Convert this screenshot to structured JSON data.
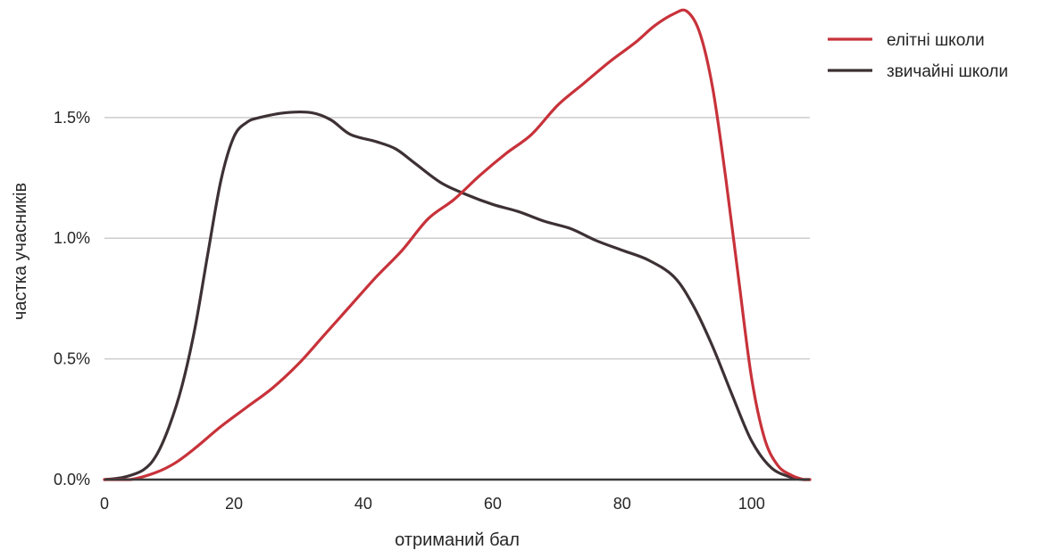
{
  "chart_data": {
    "type": "line",
    "title": "",
    "xlabel": "отриманий бал",
    "ylabel": "частка учасників",
    "xlim": [
      0,
      109
    ],
    "ylim": [
      0,
      0.0195
    ],
    "xticks": [
      {
        "value": 0,
        "label": "0"
      },
      {
        "value": 20,
        "label": "20"
      },
      {
        "value": 40,
        "label": "40"
      },
      {
        "value": 60,
        "label": "60"
      },
      {
        "value": 80,
        "label": "80"
      },
      {
        "value": 100,
        "label": "100"
      }
    ],
    "yticks": [
      {
        "value": 0.0,
        "label": "0.0%"
      },
      {
        "value": 0.005,
        "label": "0.5%"
      },
      {
        "value": 0.01,
        "label": "1.0%"
      },
      {
        "value": 0.015,
        "label": "1.5%"
      }
    ],
    "grid": "horizontal",
    "legend": "top-right",
    "series": [
      {
        "name": "елітні школи",
        "color": "#c8323a",
        "x": [
          0,
          4,
          8,
          11,
          14,
          18,
          22,
          26,
          30,
          34,
          38,
          42,
          46,
          50,
          54,
          58,
          62,
          66,
          70,
          74,
          78,
          82,
          85,
          88,
          90,
          92,
          94,
          96,
          98,
          100,
          102,
          104,
          106,
          108,
          109
        ],
        "y": [
          0.0,
          0.0,
          0.0003,
          0.0007,
          0.0013,
          0.0022,
          0.003,
          0.0038,
          0.0048,
          0.006,
          0.0072,
          0.0084,
          0.0095,
          0.0108,
          0.0116,
          0.0126,
          0.0135,
          0.0143,
          0.0155,
          0.0164,
          0.0173,
          0.0181,
          0.0188,
          0.0193,
          0.0194,
          0.0185,
          0.0162,
          0.0125,
          0.0083,
          0.0042,
          0.0017,
          0.0006,
          0.0002,
          0.0,
          0.0
        ]
      },
      {
        "name": "звичайні школи",
        "color": "#3d3134",
        "x": [
          0,
          3,
          6,
          8,
          10,
          12,
          14,
          16,
          18,
          20,
          22,
          24,
          28,
          32,
          35,
          38,
          42,
          45,
          48,
          52,
          56,
          60,
          64,
          68,
          72,
          76,
          80,
          84,
          88,
          91,
          94,
          97,
          100,
          103,
          106,
          108,
          109
        ],
        "y": [
          0.0,
          0.0001,
          0.0004,
          0.001,
          0.0022,
          0.0039,
          0.0063,
          0.0094,
          0.0124,
          0.0142,
          0.0148,
          0.015,
          0.0152,
          0.0152,
          0.0149,
          0.0143,
          0.014,
          0.0137,
          0.0131,
          0.0123,
          0.0118,
          0.0114,
          0.0111,
          0.0107,
          0.0104,
          0.0099,
          0.0095,
          0.0091,
          0.0084,
          0.0072,
          0.0055,
          0.0035,
          0.0016,
          0.0005,
          0.0001,
          0.0,
          0.0
        ]
      }
    ]
  }
}
